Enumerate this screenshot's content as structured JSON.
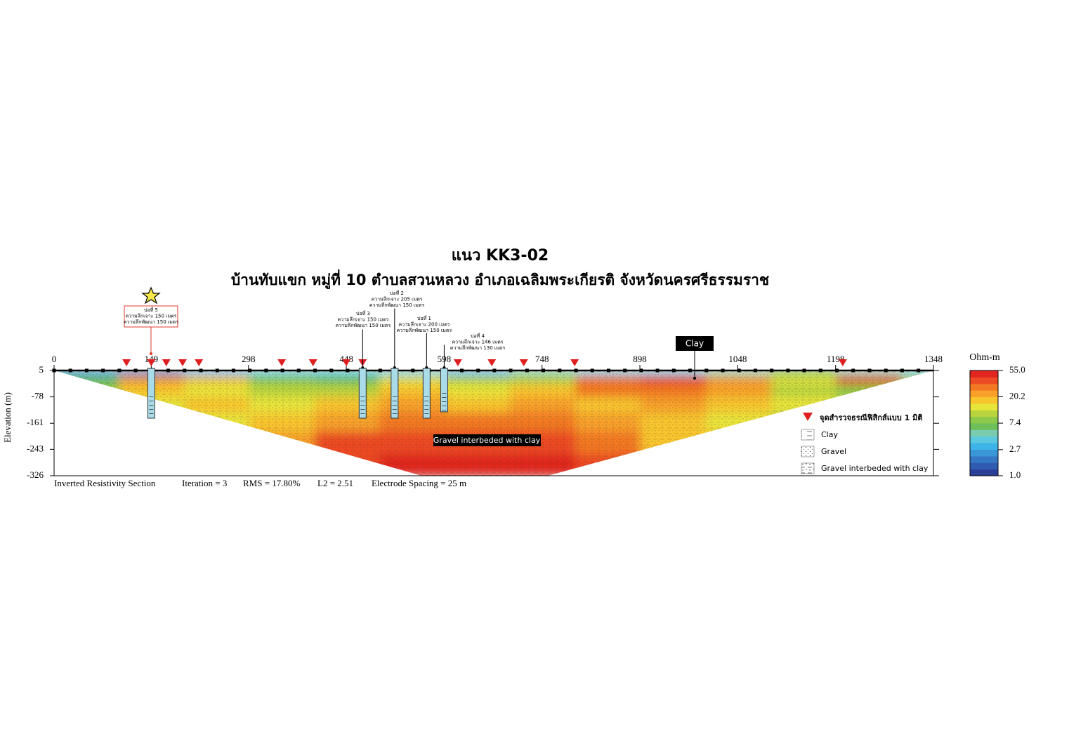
{
  "chart_data": {
    "type": "section",
    "title": "แนว KK3-02",
    "subtitle": "บ้านทับแขก หมู่ที่ 10 ตำบลสวนหลวง อำเภอเฉลิมพระเกียรติ จังหวัดนครศรีธรรมราช",
    "y_label": "Elevation (m)",
    "xlim": [
      0,
      1348
    ],
    "xticks": [
      0,
      149,
      298,
      448,
      598,
      748,
      898,
      1048,
      1198,
      1348
    ],
    "ylim": [
      -326,
      5
    ],
    "yticks": [
      5,
      -78,
      -161,
      -243,
      -326
    ],
    "footer": [
      "Inverted Resistivity Section",
      "Iteration = 3",
      "RMS = 17.80%",
      "L2 = 2.51",
      "Electrode Spacing = 25 m"
    ],
    "electrode_spacing": 25,
    "colorbar": {
      "title": "Ohm-m",
      "log": true,
      "ticks": [
        {
          "value": 55,
          "label": "55.0"
        },
        20.2,
        7.4,
        2.7,
        {
          "value": 1,
          "label": "1.0"
        }
      ],
      "colors": [
        "#2b3f99",
        "#2f5cb0",
        "#3478c4",
        "#3a96d6",
        "#3db4e8",
        "#5cc8e0",
        "#7acbb0",
        "#6fbf5a",
        "#8cc84a",
        "#b9d43c",
        "#e8e43a",
        "#f8c52e",
        "#f7a02a",
        "#f37824",
        "#ec4a22",
        "#e0261f"
      ]
    },
    "field": {
      "x_edges": [
        0,
        100,
        200,
        300,
        400,
        500,
        600,
        700,
        800,
        900,
        1000,
        1100,
        1200,
        1300,
        1348
      ],
      "z_edges": [
        5,
        -15,
        -40,
        -80,
        -130,
        -190,
        -260,
        -326
      ],
      "values": [
        [
          2.5,
          2.0,
          3.0,
          3.5,
          4.0,
          3.5,
          3.0,
          5.0,
          4.0,
          3.5,
          5.0,
          6.0,
          5.0,
          4.0
        ],
        [
          6,
          25,
          18,
          9,
          7,
          14,
          10,
          12,
          30,
          35,
          25,
          15,
          40,
          12
        ],
        [
          8,
          20,
          15,
          12,
          10,
          18,
          14,
          20,
          30,
          28,
          22,
          12,
          9,
          10
        ],
        [
          10,
          15,
          20,
          14,
          16,
          22,
          18,
          25,
          20,
          22,
          18,
          14,
          10,
          10
        ],
        [
          10,
          12,
          15,
          20,
          22,
          30,
          28,
          30,
          24,
          18,
          15,
          12,
          10,
          10
        ],
        [
          20,
          20,
          20,
          25,
          35,
          40,
          38,
          35,
          30,
          20,
          18,
          15,
          15,
          15
        ],
        [
          30,
          30,
          30,
          30,
          40,
          45,
          48,
          45,
          40,
          30,
          30,
          30,
          30,
          30
        ]
      ]
    },
    "series": [
      {
        "name": "จุดสำรวจธรณีฟิสิกส์แบบ 1 มิติ",
        "color": "#e02020",
        "x": [
          111,
          149,
          172,
          197,
          222,
          349,
          397,
          448,
          473,
          619,
          671,
          720,
          798,
          1209
        ]
      }
    ],
    "wells": [
      {
        "name": "บ่อที่ 5",
        "drilled": "ความลึกเจาะ 150 เมตร",
        "developed": "ความลึกพัฒนา 150 เมตร",
        "x": 149,
        "depth": 150
      },
      {
        "name": "บ่อที่ 3",
        "drilled": "ความลึกเจาะ 150 เมตร",
        "developed": "ความลึกพัฒนา 150 เมตร",
        "x": 473,
        "depth": 150
      },
      {
        "name": "บ่อที่ 2",
        "drilled": "ความลึกเจาะ 205 เมตร",
        "developed": "ความลึกพัฒนา 150 เมตร",
        "x": 522,
        "depth": 150
      },
      {
        "name": "บ่อที่ 1",
        "drilled": "ความลึกเจาะ 200 เมตร",
        "developed": "ความลึกพัฒนา 150 เมตร",
        "x": 571,
        "depth": 150
      },
      {
        "name": "บ่อที่ 4",
        "drilled": "ความลึกเจาะ 146 เมตร",
        "developed": "ความลึกพัฒนา 130 เมตร",
        "x": 598,
        "depth": 130
      }
    ],
    "annotations": [
      "Clay",
      "Gravel interbeded with clay"
    ],
    "legend": [
      "Clay",
      "Gravel",
      "Gravel interbeded with clay"
    ]
  }
}
